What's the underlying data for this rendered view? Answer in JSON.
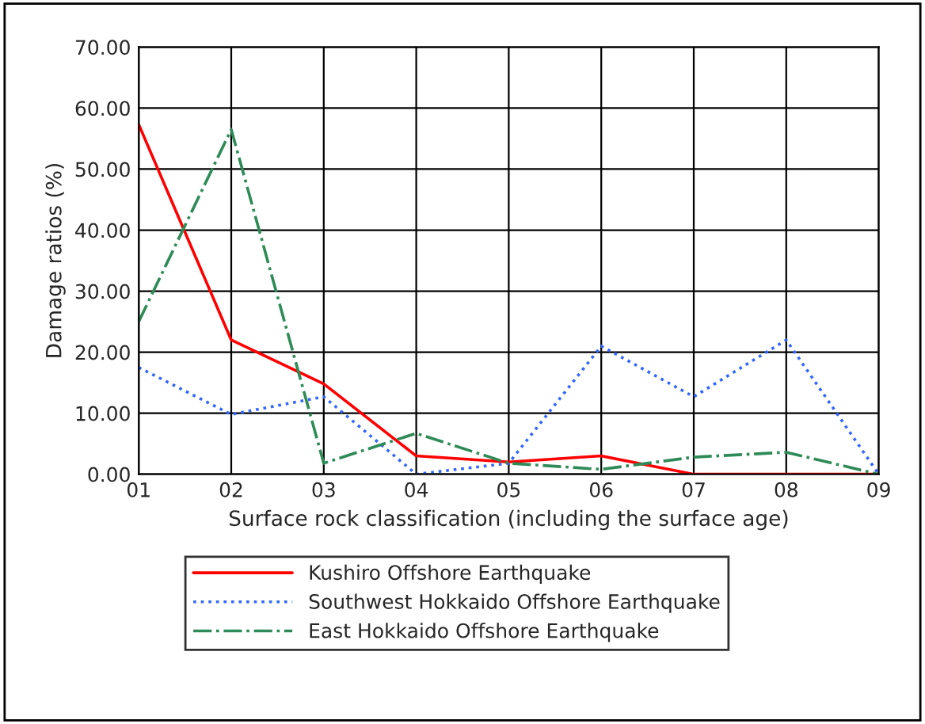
{
  "chart_data": {
    "type": "line",
    "xlabel": "Surface rock classification (including the surface age)",
    "ylabel": "Damage ratios (%)",
    "categories": [
      "01",
      "02",
      "03",
      "04",
      "05",
      "06",
      "07",
      "08",
      "09"
    ],
    "series": [
      {
        "name": "Kushiro Offshore Earthquake",
        "color": "#ff0000",
        "line_style": "solid",
        "values": [
          57.3,
          22,
          14.8,
          3,
          2,
          3,
          0,
          0,
          0
        ]
      },
      {
        "name": "Southwest Hokkaido Offshore Earthquake",
        "color": "#3366ff",
        "line_style": "dotted",
        "values": [
          17.5,
          9.8,
          12.7,
          0,
          1.8,
          21,
          12.7,
          22,
          0
        ]
      },
      {
        "name": "East Hokkaido Offshore Earthquake",
        "color": "#2e8b57",
        "line_style": "dashdot",
        "values": [
          25,
          56.5,
          1.8,
          6.7,
          1.8,
          0.8,
          2.8,
          3.6,
          0
        ]
      }
    ],
    "ylim": [
      0,
      70
    ],
    "yticks": [
      {
        "value": 0,
        "label": "0.00"
      },
      {
        "value": 10,
        "label": "10.00"
      },
      {
        "value": 20,
        "label": "20.00"
      },
      {
        "value": 30,
        "label": "30.00"
      },
      {
        "value": 40,
        "label": "40.00"
      },
      {
        "value": 50,
        "label": "50.00"
      },
      {
        "value": 60,
        "label": "60.00"
      },
      {
        "value": 70,
        "label": "70.00"
      }
    ],
    "grid": true,
    "legend": "bottom",
    "marker": "none"
  }
}
